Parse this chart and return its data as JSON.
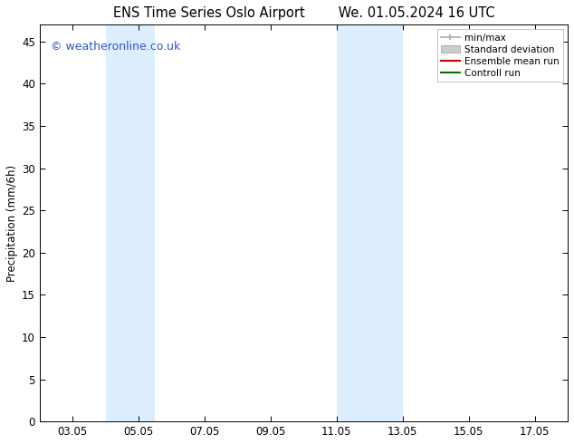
{
  "title_left": "ENS Time Series Oslo Airport",
  "title_right": "We. 01.05.2024 16 UTC",
  "ylabel": "Precipitation (mm/6h)",
  "ylim": [
    0,
    47
  ],
  "yticks": [
    0,
    5,
    10,
    15,
    20,
    25,
    30,
    35,
    40,
    45
  ],
  "xtick_labels": [
    "03.05",
    "05.05",
    "07.05",
    "09.05",
    "11.05",
    "13.05",
    "15.05",
    "17.05"
  ],
  "xtick_positions": [
    3,
    5,
    7,
    9,
    11,
    13,
    15,
    17
  ],
  "xmin": 2.0,
  "xmax": 18.0,
  "shaded_regions": [
    {
      "xmin": 4.0,
      "xmax": 5.5,
      "color": "#ddeeff"
    },
    {
      "xmin": 11.0,
      "xmax": 13.0,
      "color": "#ddeeff"
    }
  ],
  "watermark_text": "© weatheronline.co.uk",
  "watermark_color": "#3355cc",
  "legend_items": [
    {
      "label": "min/max",
      "type": "minmax",
      "color": "#aaaaaa"
    },
    {
      "label": "Standard deviation",
      "type": "patch",
      "color": "#cccccc"
    },
    {
      "label": "Ensemble mean run",
      "type": "line",
      "color": "#cc0000"
    },
    {
      "label": "Controll run",
      "type": "line",
      "color": "#007700"
    }
  ],
  "bg_color": "#ffffff",
  "title_fontsize": 10.5,
  "tick_fontsize": 8.5,
  "ylabel_fontsize": 8.5,
  "legend_fontsize": 7.5,
  "watermark_fontsize": 9
}
